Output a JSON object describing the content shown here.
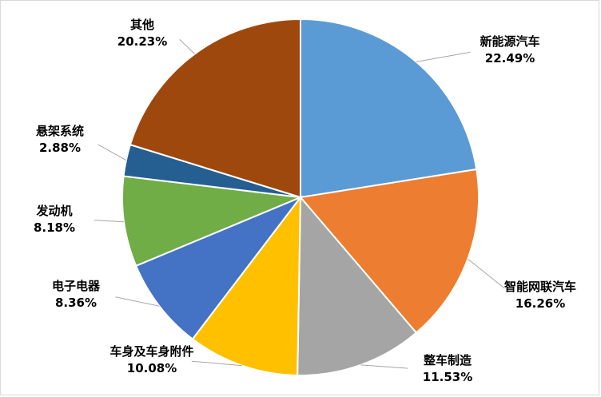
{
  "chart_data": {
    "type": "pie",
    "title": "",
    "start_angle_deg": 0,
    "direction": "clockwise",
    "slices": [
      {
        "name": "新能源汽车",
        "value": 22.49,
        "label": "22.49%",
        "color": "#5b9bd5"
      },
      {
        "name": "智能网联汽车",
        "value": 16.26,
        "label": "16.26%",
        "color": "#ed7d31"
      },
      {
        "name": "整车制造",
        "value": 11.53,
        "label": "11.53%",
        "color": "#a5a5a5"
      },
      {
        "name": "车身及车身附件",
        "value": 10.08,
        "label": "10.08%",
        "color": "#ffc000"
      },
      {
        "name": "电子电器",
        "value": 8.36,
        "label": "8.36%",
        "color": "#4472c4"
      },
      {
        "name": "发动机",
        "value": 8.18,
        "label": "8.18%",
        "color": "#70ad47"
      },
      {
        "name": "悬架系统",
        "value": 2.88,
        "label": "2.88%",
        "color": "#255e91"
      },
      {
        "name": "其他",
        "value": 20.23,
        "label": "20.23%",
        "color": "#9e480e"
      }
    ],
    "legend": "none",
    "data_labels": "outside with leader lines"
  }
}
